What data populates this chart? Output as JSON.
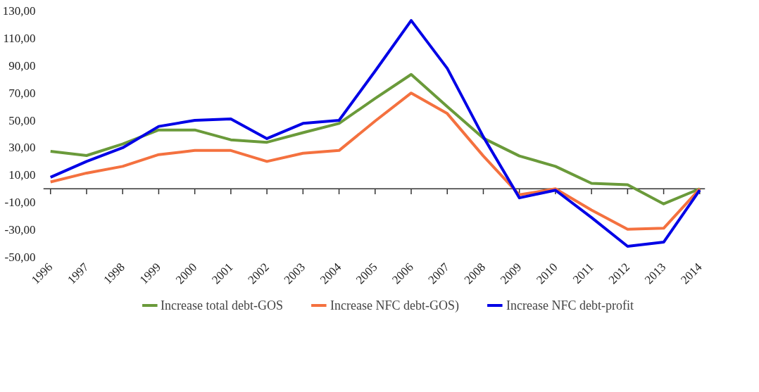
{
  "chart_data": {
    "type": "line",
    "categories": [
      "1996",
      "1997",
      "1998",
      "1999",
      "2000",
      "2001",
      "2002",
      "2003",
      "2004",
      "2005",
      "2006",
      "2007",
      "2008",
      "2009",
      "2010",
      "2011",
      "2012",
      "2013",
      "2014"
    ],
    "ylim": [
      -50,
      130
    ],
    "yticks": [
      {
        "value": -50,
        "label": "-50,00"
      },
      {
        "value": -30,
        "label": "-30,00"
      },
      {
        "value": -10,
        "label": "-10,00"
      },
      {
        "value": 10,
        "label": "10,00"
      },
      {
        "value": 30,
        "label": "30,00"
      },
      {
        "value": 50,
        "label": "50,00"
      },
      {
        "value": 70,
        "label": "70,00"
      },
      {
        "value": 90,
        "label": "90,00"
      },
      {
        "value": 110,
        "label": "110,00"
      },
      {
        "value": 130,
        "label": "130,00"
      }
    ],
    "grid": false,
    "legend": "bottom",
    "marker": "none",
    "line_style": "solid",
    "series": [
      {
        "name": "Increase total debt-GOS",
        "color": "#6a9a3a",
        "values": [
          27.4,
          24.3,
          32.7,
          43,
          43,
          35.8,
          34,
          41,
          47.8,
          66,
          83.6,
          60,
          37,
          24,
          16.4,
          4,
          3,
          -11,
          0
        ]
      },
      {
        "name": "Increase NFC debt-GOS)",
        "color": "#f4713f",
        "values": [
          5,
          11.5,
          16.4,
          25,
          28,
          28,
          20,
          26,
          28,
          49.5,
          70,
          55,
          24,
          -4.4,
          0,
          -15.5,
          -29.6,
          -28.8,
          0
        ]
      },
      {
        "name": "Increase NFC debt-profit",
        "color": "#0000e6",
        "values": [
          8.4,
          20,
          30,
          45.6,
          50,
          51,
          36.7,
          47.8,
          50,
          86,
          123,
          88,
          38,
          -6.6,
          -1,
          -21,
          -42,
          -39,
          -1
        ]
      }
    ]
  }
}
